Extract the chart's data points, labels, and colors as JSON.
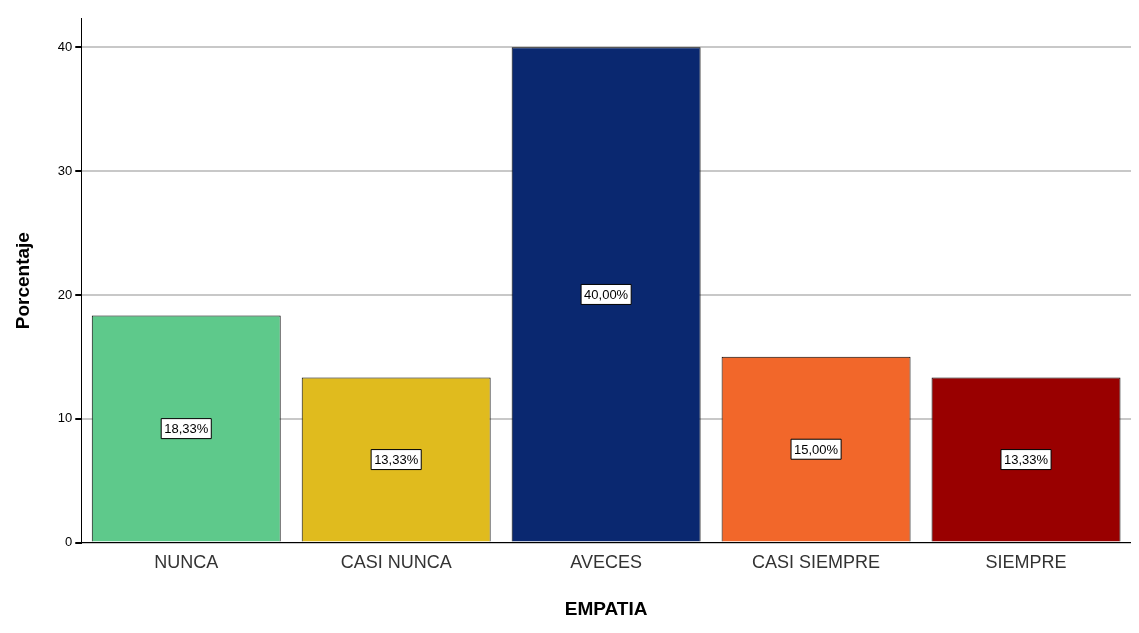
{
  "chart_data": {
    "type": "bar",
    "xlabel": "EMPATIA",
    "ylabel": "Porcentaje",
    "categories": [
      "NUNCA",
      "CASI NUNCA",
      "AVECES",
      "CASI SIEMPRE",
      "SIEMPRE"
    ],
    "values": [
      18.33,
      13.33,
      40,
      15,
      13.33
    ],
    "colors": [
      "#5ec98b",
      "#e0bb1e",
      "#0a2870",
      "#f2672a",
      "#990000"
    ],
    "value_labels": [
      "18,33%",
      "13,33%",
      "40,00%",
      "15,00%",
      "13,33%"
    ],
    "ylim": [
      0,
      42.3
    ],
    "yticks": [
      0,
      10,
      20,
      30,
      40
    ],
    "grid": "y",
    "legend": false
  }
}
